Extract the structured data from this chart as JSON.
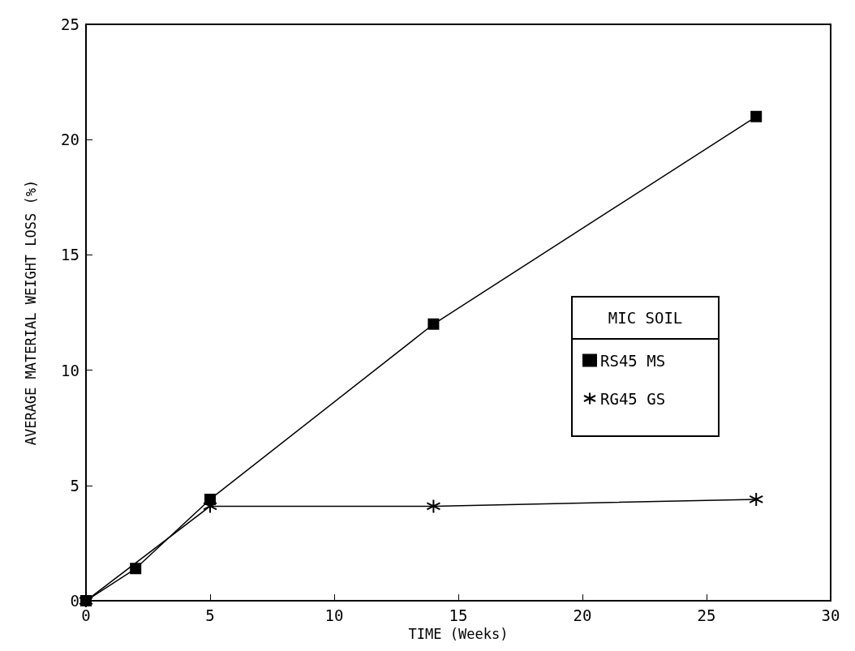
{
  "chart_data": {
    "type": "line",
    "xlabel": "TIME (Weeks)",
    "ylabel": "AVERAGE MATERIAL WEIGHT LOSS (%)",
    "legend_title": "MIC SOIL",
    "legend": "right",
    "grid": false,
    "line_style": "solid",
    "xlim": [
      0,
      30
    ],
    "xticks": [
      0,
      5,
      10,
      15,
      20,
      25,
      30
    ],
    "ylim": [
      0,
      25
    ],
    "yticks": [
      0,
      5,
      10,
      15,
      20,
      25
    ],
    "series": [
      {
        "name": "RS45 MS",
        "color": "#000000",
        "marker": "square",
        "x": [
          0,
          2,
          5,
          14,
          27
        ],
        "values": [
          0,
          1.4,
          4.4,
          12,
          21
        ]
      },
      {
        "name": "RG45 GS",
        "color": "#000000",
        "marker": "cross",
        "x": [
          0,
          5,
          14,
          27
        ],
        "values": [
          0,
          4.1,
          4.1,
          4.4
        ]
      }
    ]
  }
}
